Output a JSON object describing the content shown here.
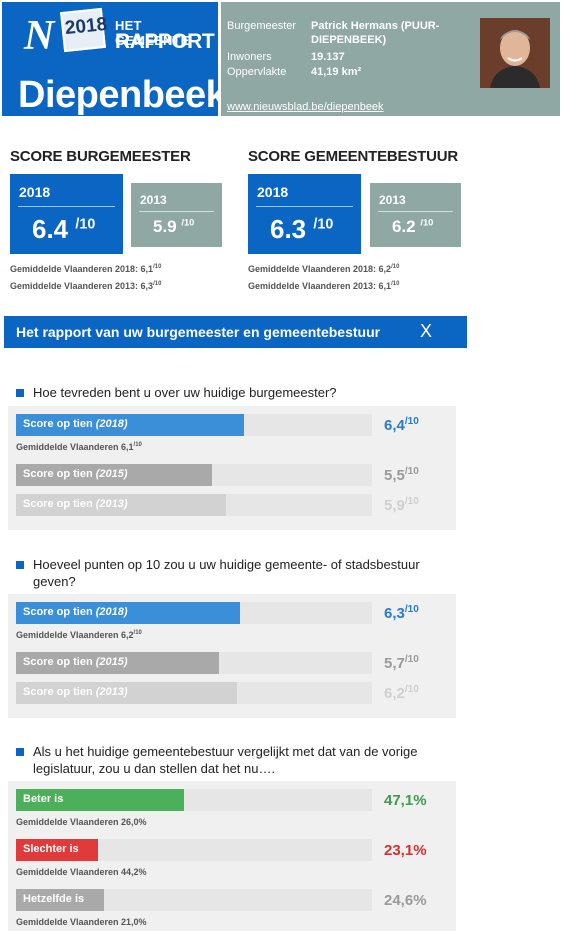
{
  "header": {
    "logo_letter": "N",
    "logo_year": "2018",
    "logo_line1": "HET GEMEENTE",
    "logo_line2": "RAPPORT",
    "city": "Diepenbeek",
    "fields": [
      {
        "label": "Burgemeester",
        "value": "Patrick Hermans (PUUR-",
        "value2": "DIEPENBEEK)"
      },
      {
        "label": "Inwoners",
        "value": "19.137"
      },
      {
        "label": "Oppervlakte",
        "value": "41,19 km²"
      }
    ],
    "link": "www.nieuwsblad.be/diepenbeek"
  },
  "score_burgemeester": {
    "title": "SCORE BURGEMEESTER",
    "y2018_label": "2018",
    "y2018_value": "6.4",
    "y2013_label": "2013",
    "y2013_value": "5.9",
    "suffix": "/10",
    "avg1_text": "Gemiddelde Vlaanderen 2018: 6,1",
    "avg2_text": "Gemiddelde Vlaanderen 2013: 6,3",
    "avg_sup": "/10"
  },
  "score_gemeentebestuur": {
    "title": "SCORE GEMEENTEBESTUUR",
    "y2018_label": "2018",
    "y2018_value": "6.3",
    "y2013_label": "2013",
    "y2013_value": "6.2",
    "suffix": "/10",
    "avg1_text": "Gemiddelde Vlaanderen 2018: 6,2",
    "avg2_text": "Gemiddelde Vlaanderen 2013: 6,1",
    "avg_sup": "/10"
  },
  "rapport": {
    "title": "Het rapport van uw burgemeester en gemeentebestuur",
    "close": "X"
  },
  "questions": [
    {
      "text": "Hoe tevreden bent u over uw huidige burgemeester?",
      "bars": [
        {
          "label": "Score op tien",
          "year": "(2018)",
          "value": "6,4",
          "suffix": "/10",
          "fill": 0.64,
          "color": "#3a8fd8",
          "valcolor": "#2a7bc8",
          "avg": "Gemiddelde Vlaanderen 6,1",
          "avg_sup": "/10"
        },
        {
          "label": "Score op tien",
          "year": "(2015)",
          "value": "5,5",
          "suffix": "/10",
          "fill": 0.55,
          "color": "#a9a9a9",
          "valcolor": "#9a9a9a"
        },
        {
          "label": "Score op tien",
          "year": "(2013)",
          "value": "5,9",
          "suffix": "/10",
          "fill": 0.59,
          "color": "#d2d2d2",
          "valcolor": "#cfcfcf"
        }
      ]
    },
    {
      "text": "Hoeveel punten op 10 zou u uw huidige gemeente- of stadsbestuur geven?",
      "bars": [
        {
          "label": "Score op tien",
          "year": "(2018)",
          "value": "6,3",
          "suffix": "/10",
          "fill": 0.63,
          "color": "#3a8fd8",
          "valcolor": "#2a7bc8",
          "avg": "Gemiddelde Vlaanderen 6,2",
          "avg_sup": "/10"
        },
        {
          "label": "Score op tien",
          "year": "(2015)",
          "value": "5,7",
          "suffix": "/10",
          "fill": 0.57,
          "color": "#a9a9a9",
          "valcolor": "#9a9a9a"
        },
        {
          "label": "Score op tien",
          "year": "(2013)",
          "value": "6,2",
          "suffix": "/10",
          "fill": 0.62,
          "color": "#d2d2d2",
          "valcolor": "#cfcfcf"
        }
      ]
    },
    {
      "text": "Als u het huidige gemeentebestuur vergelijkt met dat van de vorige legislatuur, zou u dan stellen dat het nu….",
      "bars": [
        {
          "label": "Beter is",
          "value": "47,1%",
          "fill": 0.471,
          "color": "#4caf5a",
          "valcolor": "#3a9d4a",
          "avg": "Gemiddelde Vlaanderen 26,0%"
        },
        {
          "label": "Slechter is",
          "value": "23,1%",
          "fill": 0.231,
          "color": "#e03a3a",
          "valcolor": "#d63030",
          "avg": "Gemiddelde Vlaanderen 44,2%"
        },
        {
          "label": "Hetzelfde is",
          "value": "24,6%",
          "fill": 0.246,
          "color": "#a9a9a9",
          "valcolor": "#9a9a9a",
          "avg": "Gemiddelde Vlaanderen 21,0%"
        }
      ]
    }
  ]
}
